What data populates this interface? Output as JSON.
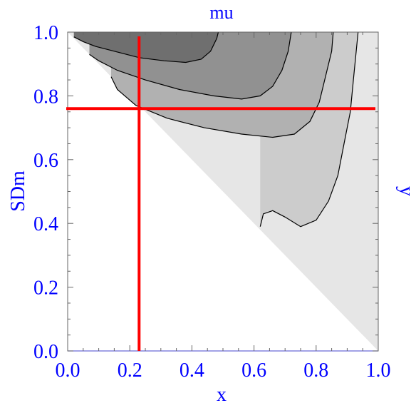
{
  "chart_data": {
    "type": "contour",
    "title": "mu",
    "xlabel": "x",
    "ylabel": "SDm",
    "y2label": "y",
    "xlim": [
      0.0,
      1.0
    ],
    "ylim": [
      0.0,
      1.0
    ],
    "x_ticks": [
      "0.0",
      "0.2",
      "0.4",
      "0.6",
      "0.8",
      "1.0"
    ],
    "x_tick_values": [
      0.0,
      0.2,
      0.4,
      0.6,
      0.8,
      1.0
    ],
    "y_ticks": [
      "0.0",
      "0.2",
      "0.4",
      "0.6",
      "0.8",
      "1.0"
    ],
    "y_tick_values": [
      0.0,
      0.2,
      0.4,
      0.6,
      0.8,
      1.0
    ],
    "grid": false,
    "shaded_region": "SDm >= 1 - x",
    "contours": [
      {
        "name": "",
        "points": [
          [
            0.62,
            0.39
          ],
          [
            0.63,
            0.43
          ],
          [
            0.66,
            0.44
          ],
          [
            0.7,
            0.42
          ],
          [
            0.75,
            0.39
          ],
          [
            0.8,
            0.41
          ],
          [
            0.84,
            0.47
          ],
          [
            0.87,
            0.55
          ],
          [
            0.89,
            0.65
          ],
          [
            0.91,
            0.75
          ],
          [
            0.92,
            0.85
          ],
          [
            0.93,
            0.95
          ],
          [
            0.935,
            1.0
          ]
        ]
      },
      {
        "name": "",
        "points": [
          [
            0.14,
            0.86
          ],
          [
            0.16,
            0.82
          ],
          [
            0.22,
            0.77
          ],
          [
            0.32,
            0.73
          ],
          [
            0.44,
            0.7
          ],
          [
            0.56,
            0.68
          ],
          [
            0.66,
            0.67
          ],
          [
            0.73,
            0.68
          ],
          [
            0.78,
            0.72
          ],
          [
            0.81,
            0.78
          ],
          [
            0.83,
            0.86
          ],
          [
            0.85,
            0.94
          ],
          [
            0.855,
            1.0
          ]
        ]
      },
      {
        "name": "",
        "points": [
          [
            0.07,
            0.93
          ],
          [
            0.1,
            0.91
          ],
          [
            0.16,
            0.88
          ],
          [
            0.25,
            0.85
          ],
          [
            0.36,
            0.82
          ],
          [
            0.47,
            0.8
          ],
          [
            0.56,
            0.79
          ],
          [
            0.62,
            0.8
          ],
          [
            0.66,
            0.83
          ],
          [
            0.69,
            0.88
          ],
          [
            0.71,
            0.94
          ],
          [
            0.72,
            1.0
          ]
        ]
      },
      {
        "name": "",
        "points": [
          [
            0.02,
            0.985
          ],
          [
            0.05,
            0.97
          ],
          [
            0.09,
            0.955
          ],
          [
            0.15,
            0.94
          ],
          [
            0.23,
            0.92
          ],
          [
            0.31,
            0.91
          ],
          [
            0.38,
            0.905
          ],
          [
            0.43,
            0.915
          ],
          [
            0.46,
            0.94
          ],
          [
            0.48,
            0.98
          ],
          [
            0.485,
            1.0
          ]
        ]
      }
    ],
    "fill_levels": [
      "#e6e6e6",
      "#cccccc",
      "#b1b1b1",
      "#919191",
      "#6f6f6f"
    ],
    "crosshair": {
      "x": 0.23,
      "y": 0.76,
      "color": "#ff0000"
    },
    "baseline": {
      "y": 0.0,
      "color": "#6b6bd6"
    },
    "text_color": "#0000ff"
  }
}
